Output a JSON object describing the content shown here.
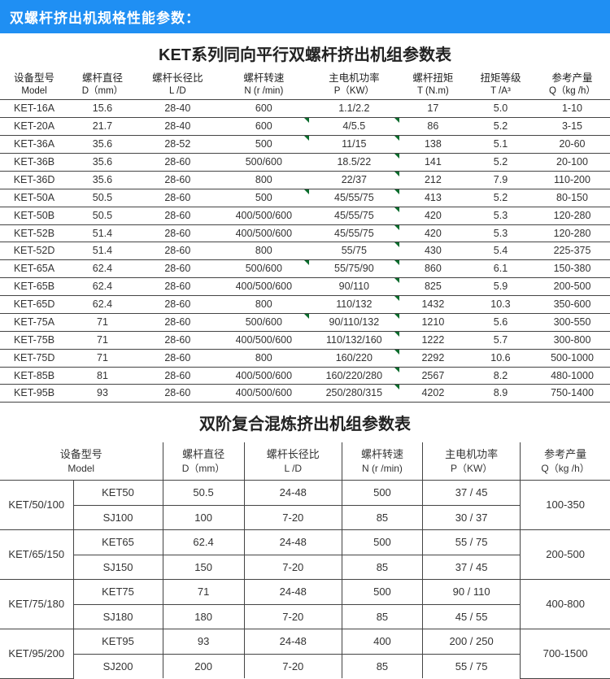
{
  "header": "双螺杆挤出机规格性能参数：",
  "table1": {
    "title": "KET系列同向平行双螺杆挤出机组参数表",
    "cols": [
      {
        "l1": "设备型号",
        "l2": "Model"
      },
      {
        "l1": "螺杆直径",
        "l2": "D（mm）"
      },
      {
        "l1": "螺杆长径比",
        "l2": "L /D"
      },
      {
        "l1": "螺杆转速",
        "l2": "N (r /min)"
      },
      {
        "l1": "主电机功率",
        "l2": "P（KW）"
      },
      {
        "l1": "螺杆扭矩",
        "l2": "T (N.m)"
      },
      {
        "l1": "扭矩等级",
        "l2": "T /A³"
      },
      {
        "l1": "参考产量",
        "l2": "Q（kg /h）"
      }
    ],
    "rows": [
      [
        "KET-16A",
        "15.6",
        "28-40",
        "600",
        "1.1/2.2",
        "17",
        "5.0",
        "1-10"
      ],
      [
        "KET-20A",
        "21.7",
        "28-40",
        "600",
        "4/5.5",
        "86",
        "5.2",
        "3-15"
      ],
      [
        "KET-36A",
        "35.6",
        "28-52",
        "500",
        "11/15",
        "138",
        "5.1",
        "20-60"
      ],
      [
        "KET-36B",
        "35.6",
        "28-60",
        "500/600",
        "18.5/22",
        "141",
        "5.2",
        "20-100"
      ],
      [
        "KET-36D",
        "35.6",
        "28-60",
        "800",
        "22/37",
        "212",
        "7.9",
        "110-200"
      ],
      [
        "KET-50A",
        "50.5",
        "28-60",
        "500",
        "45/55/75",
        "413",
        "5.2",
        "80-150"
      ],
      [
        "KET-50B",
        "50.5",
        "28-60",
        "400/500/600",
        "45/55/75",
        "420",
        "5.3",
        "120-280"
      ],
      [
        "KET-52B",
        "51.4",
        "28-60",
        "400/500/600",
        "45/55/75",
        "420",
        "5.3",
        "120-280"
      ],
      [
        "KET-52D",
        "51.4",
        "28-60",
        "800",
        "55/75",
        "430",
        "5.4",
        "225-375"
      ],
      [
        "KET-65A",
        "62.4",
        "28-60",
        "500/600",
        "55/75/90",
        "860",
        "6.1",
        "150-380"
      ],
      [
        "KET-65B",
        "62.4",
        "28-60",
        "400/500/600",
        "90/110",
        "825",
        "5.9",
        "200-500"
      ],
      [
        "KET-65D",
        "62.4",
        "28-60",
        "800",
        "110/132",
        "1432",
        "10.3",
        "350-600"
      ],
      [
        "KET-75A",
        "71",
        "28-60",
        "500/600",
        "90/110/132",
        "1210",
        "5.6",
        "300-550"
      ],
      [
        "KET-75B",
        "71",
        "28-60",
        "400/500/600",
        "110/132/160",
        "1222",
        "5.7",
        "300-800"
      ],
      [
        "KET-75D",
        "71",
        "28-60",
        "800",
        "160/220",
        "2292",
        "10.6",
        "500-1000"
      ],
      [
        "KET-85B",
        "81",
        "28-60",
        "400/500/600",
        "160/220/280",
        "2567",
        "8.2",
        "480-1000"
      ],
      [
        "KET-95B",
        "93",
        "28-60",
        "400/500/600",
        "250/280/315",
        "4202",
        "8.9",
        "750-1400"
      ]
    ]
  },
  "table2": {
    "title": "双阶复合混炼挤出机组参数表",
    "cols": [
      {
        "l1": "设备型号",
        "l2": "Model"
      },
      {
        "l1": "螺杆直径",
        "l2": "D（mm）"
      },
      {
        "l1": "螺杆长径比",
        "l2": "L /D"
      },
      {
        "l1": "螺杆转速",
        "l2": "N (r /min)"
      },
      {
        "l1": "主电机功率",
        "l2": "P（KW）"
      },
      {
        "l1": "参考产量",
        "l2": "Q（kg /h）"
      }
    ],
    "groups": [
      {
        "g": "KET/50/100",
        "out": "100-350",
        "rows": [
          [
            "KET50",
            "50.5",
            "24-48",
            "500",
            "37 / 45"
          ],
          [
            "SJ100",
            "100",
            "7-20",
            "85",
            "30 / 37"
          ]
        ]
      },
      {
        "g": "KET/65/150",
        "out": "200-500",
        "rows": [
          [
            "KET65",
            "62.4",
            "24-48",
            "500",
            "55 / 75"
          ],
          [
            "SJ150",
            "150",
            "7-20",
            "85",
            "37 / 45"
          ]
        ]
      },
      {
        "g": "KET/75/180",
        "out": "400-800",
        "rows": [
          [
            "KET75",
            "71",
            "24-48",
            "500",
            "90 / 110"
          ],
          [
            "SJ180",
            "180",
            "7-20",
            "85",
            "45 / 55"
          ]
        ]
      },
      {
        "g": "KET/95/200",
        "out": "700-1500",
        "rows": [
          [
            "KET95",
            "93",
            "24-48",
            "400",
            "200 / 250"
          ],
          [
            "SJ200",
            "200",
            "7-20",
            "85",
            "55 / 75"
          ]
        ]
      }
    ]
  }
}
